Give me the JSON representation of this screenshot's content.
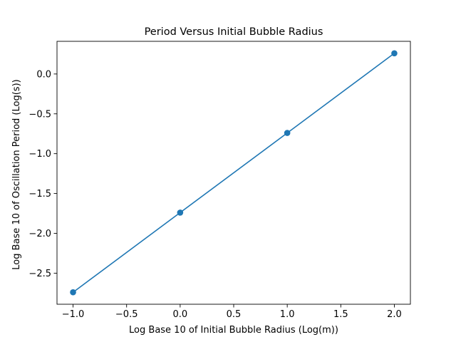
{
  "chart_data": {
    "type": "line",
    "title": "Period Versus Initial Bubble Radius",
    "xlabel": "Log Base 10 of Initial Bubble Radius (Log(m))",
    "ylabel": "Log Base 10 of Oscillation Period (Log(s))",
    "x": [
      -1.0,
      0.0,
      1.0,
      2.0
    ],
    "series": [
      {
        "values": [
          -2.74,
          -1.74,
          -0.74,
          0.26
        ],
        "color": "#1f77b4",
        "marker": "circle"
      }
    ],
    "xlim": [
      -1.15,
      2.15
    ],
    "ylim": [
      -2.89,
      0.41
    ],
    "xticks": [
      -1.0,
      -0.5,
      0.0,
      0.5,
      1.0,
      1.5,
      2.0
    ],
    "xtick_labels": [
      "−1.0",
      "−0.5",
      "0.0",
      "0.5",
      "1.0",
      "1.5",
      "2.0"
    ],
    "yticks": [
      -2.5,
      -2.0,
      -1.5,
      -1.0,
      -0.5,
      0.0
    ],
    "ytick_labels": [
      "−2.5",
      "−2.0",
      "−1.5",
      "−1.0",
      "−0.5",
      "0.0"
    ],
    "grid": false,
    "legend": false
  }
}
